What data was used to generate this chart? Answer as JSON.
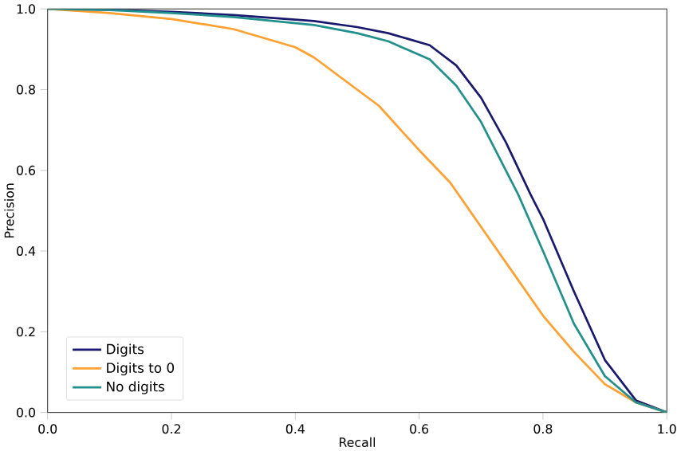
{
  "chart_data": {
    "type": "line",
    "xlabel": "Recall",
    "ylabel": "Precision",
    "xlim": [
      0,
      1
    ],
    "ylim": [
      0,
      1
    ],
    "xticks": [
      {
        "value": 0,
        "label": "0.0"
      },
      0.2,
      0.4,
      0.6,
      0.8,
      {
        "value": 1,
        "label": "1.0"
      }
    ],
    "yticks": [
      {
        "value": 0,
        "label": "0.0"
      },
      0.2,
      0.4,
      0.6,
      0.8,
      {
        "value": 1,
        "label": "1.0"
      }
    ],
    "legend": "bottom left",
    "grid": false,
    "series": [
      {
        "name": "Digits",
        "color": "#191970",
        "x": [
          0,
          0.1,
          0.2,
          0.3,
          0.43,
          0.5,
          0.55,
          0.617,
          0.66,
          0.7,
          0.74,
          0.78,
          0.8,
          0.85,
          0.9,
          0.95,
          1.0
        ],
        "values": [
          1,
          0.998,
          0.993,
          0.985,
          0.97,
          0.955,
          0.94,
          0.91,
          0.86,
          0.78,
          0.67,
          0.54,
          0.48,
          0.3,
          0.13,
          0.03,
          0
        ]
      },
      {
        "name": "Digits to 0",
        "color": "#ffa030",
        "x": [
          0,
          0.1,
          0.2,
          0.3,
          0.4,
          0.43,
          0.5,
          0.535,
          0.6,
          0.65,
          0.7,
          0.75,
          0.8,
          0.85,
          0.9,
          0.95,
          1.0
        ],
        "values": [
          1,
          0.99,
          0.975,
          0.95,
          0.905,
          0.88,
          0.8,
          0.76,
          0.65,
          0.57,
          0.46,
          0.35,
          0.24,
          0.15,
          0.07,
          0.025,
          0
        ]
      },
      {
        "name": "No digits",
        "color": "#22908c",
        "x": [
          0,
          0.1,
          0.2,
          0.3,
          0.43,
          0.5,
          0.55,
          0.617,
          0.66,
          0.7,
          0.76,
          0.8,
          0.85,
          0.9,
          0.95,
          1.0
        ],
        "values": [
          1,
          0.997,
          0.99,
          0.98,
          0.96,
          0.94,
          0.92,
          0.875,
          0.81,
          0.72,
          0.54,
          0.4,
          0.22,
          0.09,
          0.025,
          0
        ]
      }
    ]
  }
}
